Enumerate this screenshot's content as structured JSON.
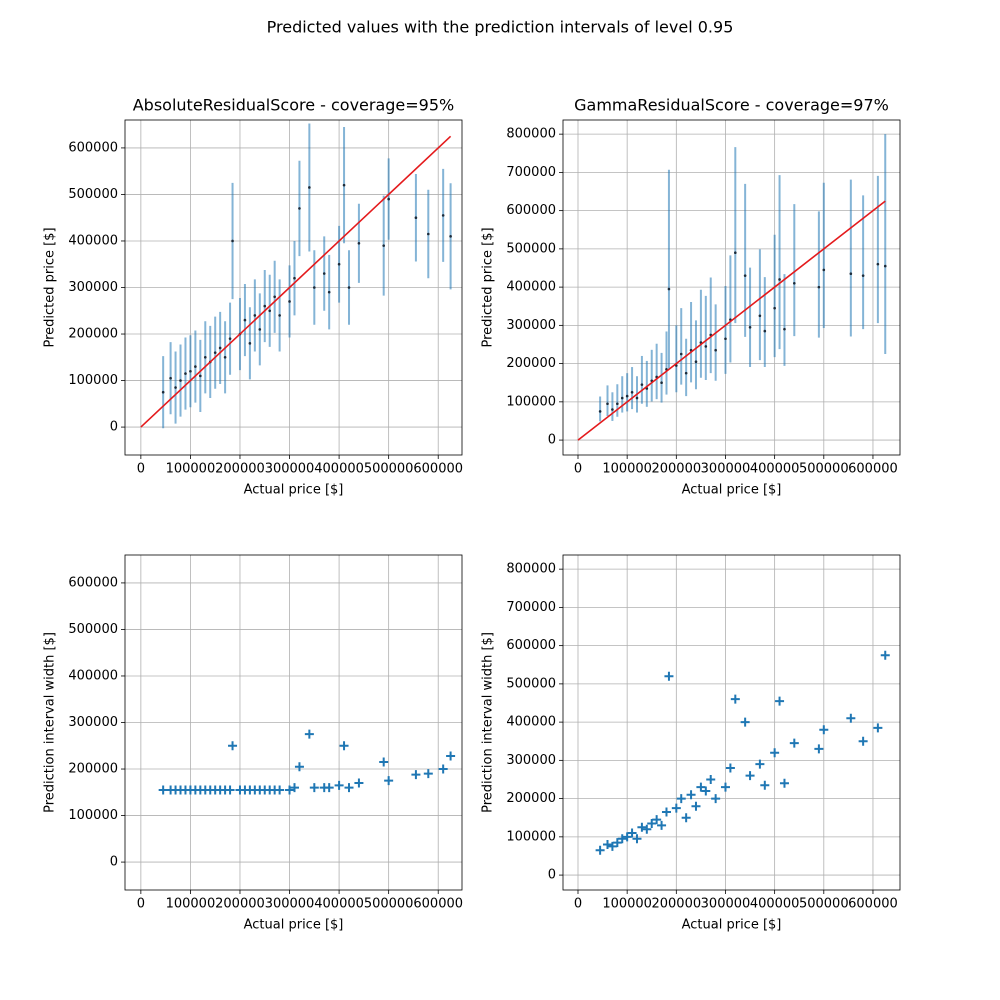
{
  "title": "Predicted values with the prediction intervals of level 0.95",
  "chart_data": [
    {
      "type": "errorbar",
      "title": "AbsoluteResidualScore - coverage=95%",
      "x_label": "Actual price [$]",
      "y_label": "Predicted price [$]",
      "x": [
        45000,
        60000,
        70000,
        80000,
        90000,
        100000,
        110000,
        120000,
        130000,
        140000,
        150000,
        160000,
        170000,
        180000,
        185000,
        200000,
        210000,
        220000,
        230000,
        240000,
        250000,
        260000,
        270000,
        280000,
        300000,
        310000,
        320000,
        340000,
        350000,
        370000,
        380000,
        400000,
        410000,
        420000,
        440000,
        490000,
        500000,
        555000,
        580000,
        610000,
        625000
      ],
      "values": [
        75000,
        105000,
        85000,
        100000,
        115000,
        120000,
        130000,
        110000,
        150000,
        140000,
        160000,
        170000,
        150000,
        190000,
        400000,
        200000,
        230000,
        180000,
        240000,
        210000,
        260000,
        250000,
        280000,
        240000,
        270000,
        320000,
        470000,
        515000,
        300000,
        330000,
        290000,
        350000,
        520000,
        300000,
        395000,
        390000,
        490000,
        450000,
        415000,
        455000,
        410000
      ],
      "lower": [
        -2500,
        27500,
        7500,
        22500,
        37500,
        42500,
        52500,
        32500,
        72500,
        62500,
        82500,
        92500,
        72500,
        112500,
        275000,
        122500,
        152500,
        102500,
        162500,
        132500,
        182500,
        172500,
        202500,
        162500,
        192500,
        240000,
        367500,
        377500,
        220000,
        250000,
        210000,
        267500,
        395000,
        220000,
        310000,
        282500,
        402500,
        356000,
        320000,
        355000,
        296000
      ],
      "upper": [
        152500,
        182500,
        162500,
        177500,
        192500,
        197500,
        207500,
        187500,
        227500,
        217500,
        237500,
        247500,
        227500,
        267500,
        525000,
        277500,
        307500,
        257500,
        317500,
        287500,
        337500,
        327500,
        357500,
        317500,
        347500,
        400000,
        572500,
        652500,
        380000,
        410000,
        370000,
        432500,
        645000,
        380000,
        480000,
        497500,
        577500,
        544000,
        510000,
        555000,
        524000
      ],
      "color": "#1f77b4",
      "point_color": "#1c2b3a",
      "reference_line": {
        "x": [
          0,
          625000
        ],
        "values": [
          0,
          625000
        ],
        "color": "#e41a1c"
      },
      "xlim": [
        -32000,
        648000
      ],
      "ylim": [
        -60000,
        660000
      ],
      "xticks": [
        0,
        100000,
        200000,
        300000,
        400000,
        500000,
        600000
      ],
      "yticks": [
        0,
        100000,
        200000,
        300000,
        400000,
        500000,
        600000
      ],
      "grid": true
    },
    {
      "type": "errorbar",
      "title": "GammaResidualScore - coverage=97%",
      "x_label": "Actual price [$]",
      "y_label": "Predicted price [$]",
      "x": [
        45000,
        60000,
        70000,
        80000,
        90000,
        100000,
        110000,
        120000,
        130000,
        140000,
        150000,
        160000,
        170000,
        180000,
        185000,
        200000,
        210000,
        220000,
        230000,
        240000,
        250000,
        260000,
        270000,
        280000,
        300000,
        310000,
        320000,
        340000,
        350000,
        370000,
        380000,
        400000,
        410000,
        420000,
        440000,
        490000,
        500000,
        555000,
        580000,
        610000,
        625000
      ],
      "values": [
        75000,
        95000,
        80000,
        95000,
        110000,
        115000,
        125000,
        110000,
        145000,
        135000,
        155000,
        165000,
        150000,
        185000,
        395000,
        195000,
        225000,
        175000,
        235000,
        205000,
        255000,
        245000,
        275000,
        235000,
        265000,
        315000,
        490000,
        430000,
        295000,
        325000,
        285000,
        345000,
        420000,
        290000,
        410000,
        400000,
        445000,
        435000,
        430000,
        460000,
        455000
      ],
      "lower": [
        49000,
        63000,
        50000,
        61000,
        72000,
        75000,
        81000,
        72000,
        95000,
        87000,
        101000,
        107000,
        98000,
        119000,
        187000,
        125000,
        145000,
        115000,
        151000,
        133000,
        163000,
        157000,
        175000,
        155000,
        173000,
        203000,
        306000,
        270000,
        191000,
        209000,
        191000,
        217000,
        238000,
        194000,
        272000,
        268000,
        293000,
        271000,
        290000,
        306000,
        225000
      ],
      "upper": [
        114000,
        143000,
        125000,
        146000,
        167000,
        175000,
        191000,
        167000,
        220000,
        207000,
        236000,
        252000,
        228000,
        284000,
        707000,
        300000,
        345000,
        265000,
        361000,
        313000,
        393000,
        377000,
        425000,
        355000,
        403000,
        483000,
        766000,
        670000,
        451000,
        499000,
        426000,
        537000,
        693000,
        434000,
        617000,
        598000,
        673000,
        681000,
        640000,
        691000,
        800000
      ],
      "color": "#1f77b4",
      "point_color": "#1c2b3a",
      "reference_line": {
        "x": [
          0,
          625000
        ],
        "values": [
          0,
          625000
        ],
        "color": "#e41a1c"
      },
      "xlim": [
        -30500,
        655000
      ],
      "ylim": [
        -39000,
        837000
      ],
      "xticks": [
        0,
        100000,
        200000,
        300000,
        400000,
        500000,
        600000
      ],
      "yticks": [
        0,
        100000,
        200000,
        300000,
        400000,
        500000,
        600000,
        700000,
        800000
      ],
      "grid": true
    },
    {
      "type": "scatter",
      "x_label": "Actual price [$]",
      "y_label": "Prediction interval width [$]",
      "marker": "+",
      "x": [
        45000,
        60000,
        70000,
        80000,
        90000,
        100000,
        110000,
        120000,
        130000,
        140000,
        150000,
        160000,
        170000,
        180000,
        185000,
        200000,
        210000,
        220000,
        230000,
        240000,
        250000,
        260000,
        270000,
        280000,
        300000,
        310000,
        320000,
        340000,
        350000,
        370000,
        380000,
        400000,
        410000,
        420000,
        440000,
        490000,
        500000,
        555000,
        580000,
        610000,
        625000
      ],
      "values": [
        155000,
        155000,
        155000,
        155000,
        155000,
        155000,
        155000,
        155000,
        155000,
        155000,
        155000,
        155000,
        155000,
        155000,
        250000,
        155000,
        155000,
        155000,
        155000,
        155000,
        155000,
        155000,
        155000,
        155000,
        155000,
        160000,
        205000,
        275000,
        160000,
        160000,
        160000,
        165000,
        250000,
        160000,
        170000,
        215000,
        175000,
        188000,
        190000,
        200000,
        228000
      ],
      "color": "#1f77b4",
      "xlim": [
        -32000,
        648000
      ],
      "ylim": [
        -60000,
        660000
      ],
      "xticks": [
        0,
        100000,
        200000,
        300000,
        400000,
        500000,
        600000
      ],
      "yticks": [
        0,
        100000,
        200000,
        300000,
        400000,
        500000,
        600000
      ],
      "grid": true
    },
    {
      "type": "scatter",
      "x_label": "Actual price [$]",
      "y_label": "Prediction interval width [$]",
      "marker": "+",
      "x": [
        45000,
        60000,
        70000,
        80000,
        90000,
        100000,
        110000,
        120000,
        130000,
        140000,
        150000,
        160000,
        170000,
        180000,
        185000,
        200000,
        210000,
        220000,
        230000,
        240000,
        250000,
        260000,
        270000,
        280000,
        300000,
        310000,
        320000,
        340000,
        350000,
        370000,
        380000,
        400000,
        410000,
        420000,
        440000,
        490000,
        500000,
        555000,
        580000,
        610000,
        625000
      ],
      "values": [
        65000,
        80000,
        75000,
        85000,
        95000,
        100000,
        110000,
        95000,
        125000,
        120000,
        135000,
        145000,
        130000,
        165000,
        520000,
        175000,
        200000,
        150000,
        210000,
        180000,
        230000,
        220000,
        250000,
        200000,
        230000,
        280000,
        460000,
        400000,
        260000,
        290000,
        235000,
        320000,
        455000,
        240000,
        345000,
        330000,
        380000,
        410000,
        350000,
        385000,
        575000
      ],
      "color": "#1f77b4",
      "xlim": [
        -30500,
        655000
      ],
      "ylim": [
        -39000,
        837000
      ],
      "xticks": [
        0,
        100000,
        200000,
        300000,
        400000,
        500000,
        600000
      ],
      "yticks": [
        0,
        100000,
        200000,
        300000,
        400000,
        500000,
        600000,
        700000,
        800000
      ],
      "grid": true
    }
  ]
}
